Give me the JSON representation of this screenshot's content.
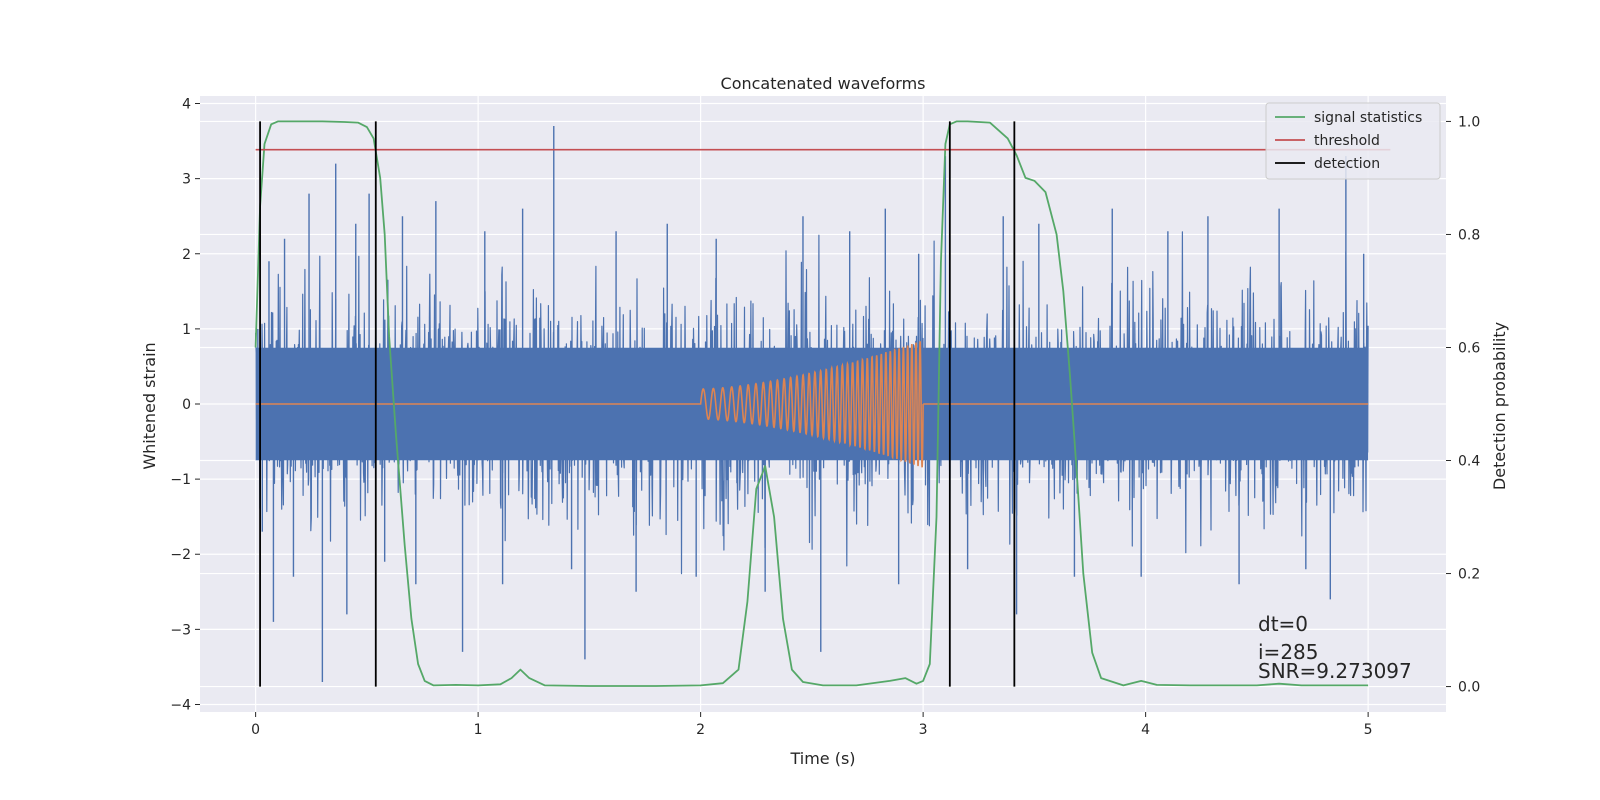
{
  "chart_data": {
    "type": "line",
    "title": "Concatenated waveforms",
    "xlabel": "Time (s)",
    "ylabel": "Whitened strain",
    "y2label": "Detection probability",
    "xlim": [
      -0.25,
      5.35
    ],
    "ylim": [
      -4.1,
      4.1
    ],
    "y2lim": [
      -0.045,
      1.045
    ],
    "xticks": [
      0,
      1,
      2,
      3,
      4,
      5
    ],
    "xtick_labels": [
      "0",
      "1",
      "2",
      "3",
      "4",
      "5"
    ],
    "yticks": [
      -4,
      -3,
      -2,
      -1,
      0,
      1,
      2,
      3,
      4
    ],
    "ytick_labels": [
      "−4",
      "−3",
      "−2",
      "−1",
      "0",
      "1",
      "2",
      "3",
      "4"
    ],
    "y2ticks": [
      0.0,
      0.2,
      0.4,
      0.6,
      0.8,
      1.0
    ],
    "y2tick_labels": [
      "0.0",
      "0.2",
      "0.4",
      "0.6",
      "0.8",
      "1.0"
    ],
    "grid": true,
    "legend_position": "top-right",
    "colors": {
      "strain": "#4c72b0",
      "injected": "#dd8452",
      "signal_statistics": "#55a868",
      "threshold": "#c44e52",
      "detection": "#000000",
      "background": "#eaeaf2",
      "grid": "#ffffff"
    },
    "legend": [
      "signal statistics",
      "threshold",
      "detection"
    ],
    "strain_noise": {
      "x_range": [
        0,
        5
      ],
      "band_sigma": 0.75,
      "peak_abs": 3.7
    },
    "strain_spikes": [
      {
        "x": 0.01,
        "y": 1.0
      },
      {
        "x": 0.03,
        "y": -1.7
      },
      {
        "x": 0.06,
        "y": 1.9
      },
      {
        "x": 0.08,
        "y": -2.9
      },
      {
        "x": 0.13,
        "y": 2.2
      },
      {
        "x": 0.17,
        "y": -2.3
      },
      {
        "x": 0.24,
        "y": 2.8
      },
      {
        "x": 0.3,
        "y": -3.7
      },
      {
        "x": 0.36,
        "y": 3.2
      },
      {
        "x": 0.41,
        "y": -2.8
      },
      {
        "x": 0.45,
        "y": 2.4
      },
      {
        "x": 0.51,
        "y": 2.8
      },
      {
        "x": 0.58,
        "y": -2.1
      },
      {
        "x": 0.66,
        "y": 2.5
      },
      {
        "x": 0.72,
        "y": -2.4
      },
      {
        "x": 0.81,
        "y": 2.7
      },
      {
        "x": 0.93,
        "y": -3.3
      },
      {
        "x": 1.03,
        "y": 2.3
      },
      {
        "x": 1.11,
        "y": -2.4
      },
      {
        "x": 1.2,
        "y": 2.6
      },
      {
        "x": 1.34,
        "y": 3.7
      },
      {
        "x": 1.42,
        "y": -2.2
      },
      {
        "x": 1.48,
        "y": -3.4
      },
      {
        "x": 1.62,
        "y": 2.3
      },
      {
        "x": 1.71,
        "y": -2.5
      },
      {
        "x": 1.85,
        "y": 2.4
      },
      {
        "x": 1.98,
        "y": -2.3
      },
      {
        "x": 2.07,
        "y": 2.2
      },
      {
        "x": 2.29,
        "y": -2.5
      },
      {
        "x": 2.46,
        "y": 2.5
      },
      {
        "x": 2.54,
        "y": -3.3
      },
      {
        "x": 2.67,
        "y": 2.3
      },
      {
        "x": 2.83,
        "y": 2.6
      },
      {
        "x": 2.89,
        "y": -2.4
      },
      {
        "x": 2.98,
        "y": 2.0
      },
      {
        "x": 3.1,
        "y": 3.3
      },
      {
        "x": 3.2,
        "y": -2.2
      },
      {
        "x": 3.36,
        "y": 2.5
      },
      {
        "x": 3.42,
        "y": -2.8
      },
      {
        "x": 3.52,
        "y": 2.4
      },
      {
        "x": 3.68,
        "y": -2.3
      },
      {
        "x": 3.85,
        "y": 2.6
      },
      {
        "x": 3.98,
        "y": -2.3
      },
      {
        "x": 4.1,
        "y": 2.3
      },
      {
        "x": 4.28,
        "y": 2.5
      },
      {
        "x": 4.42,
        "y": -2.4
      },
      {
        "x": 4.6,
        "y": 2.6
      },
      {
        "x": 4.72,
        "y": -2.2
      },
      {
        "x": 4.83,
        "y": -2.6
      },
      {
        "x": 4.9,
        "y": 3.3
      },
      {
        "x": 4.98,
        "y": 2.0
      }
    ],
    "injected_chirp": {
      "t_start": 2.0,
      "t_end": 3.0,
      "amp_start": 0.2,
      "amp_end": 0.85,
      "cycles": 38
    },
    "signal_statistics": {
      "x": [
        0.0,
        0.02,
        0.04,
        0.07,
        0.1,
        0.2,
        0.3,
        0.4,
        0.46,
        0.5,
        0.53,
        0.56,
        0.58,
        0.6,
        0.63,
        0.67,
        0.7,
        0.73,
        0.76,
        0.8,
        0.9,
        1.0,
        1.1,
        1.15,
        1.19,
        1.23,
        1.3,
        1.5,
        1.8,
        2.0,
        2.1,
        2.17,
        2.21,
        2.25,
        2.29,
        2.33,
        2.37,
        2.41,
        2.46,
        2.55,
        2.7,
        2.85,
        2.92,
        2.97,
        3.0,
        3.03,
        3.06,
        3.08,
        3.1,
        3.12,
        3.15,
        3.2,
        3.3,
        3.38,
        3.42,
        3.46,
        3.5,
        3.55,
        3.6,
        3.63,
        3.66,
        3.69,
        3.72,
        3.76,
        3.8,
        3.9,
        3.98,
        4.05,
        4.2,
        4.5,
        4.6,
        4.7,
        5.0
      ],
      "y": [
        0.6,
        0.85,
        0.96,
        0.995,
        1.0,
        1.0,
        1.0,
        0.999,
        0.998,
        0.99,
        0.97,
        0.9,
        0.8,
        0.62,
        0.45,
        0.25,
        0.12,
        0.04,
        0.01,
        0.002,
        0.003,
        0.002,
        0.004,
        0.015,
        0.03,
        0.015,
        0.002,
        0.001,
        0.001,
        0.002,
        0.006,
        0.03,
        0.15,
        0.35,
        0.39,
        0.3,
        0.12,
        0.03,
        0.008,
        0.002,
        0.002,
        0.01,
        0.015,
        0.005,
        0.01,
        0.04,
        0.3,
        0.75,
        0.96,
        0.995,
        1.0,
        1.0,
        0.998,
        0.97,
        0.94,
        0.9,
        0.895,
        0.875,
        0.8,
        0.7,
        0.55,
        0.38,
        0.2,
        0.06,
        0.015,
        0.002,
        0.01,
        0.003,
        0.002,
        0.002,
        0.005,
        0.002,
        0.002
      ]
    },
    "threshold": {
      "x": [
        0,
        5.1
      ],
      "y": 0.95
    },
    "detection_lines": [
      0.02,
      0.54,
      3.12,
      3.41
    ],
    "annotations": [
      "dt=0",
      "i=285",
      "SNR=9.273097"
    ]
  }
}
